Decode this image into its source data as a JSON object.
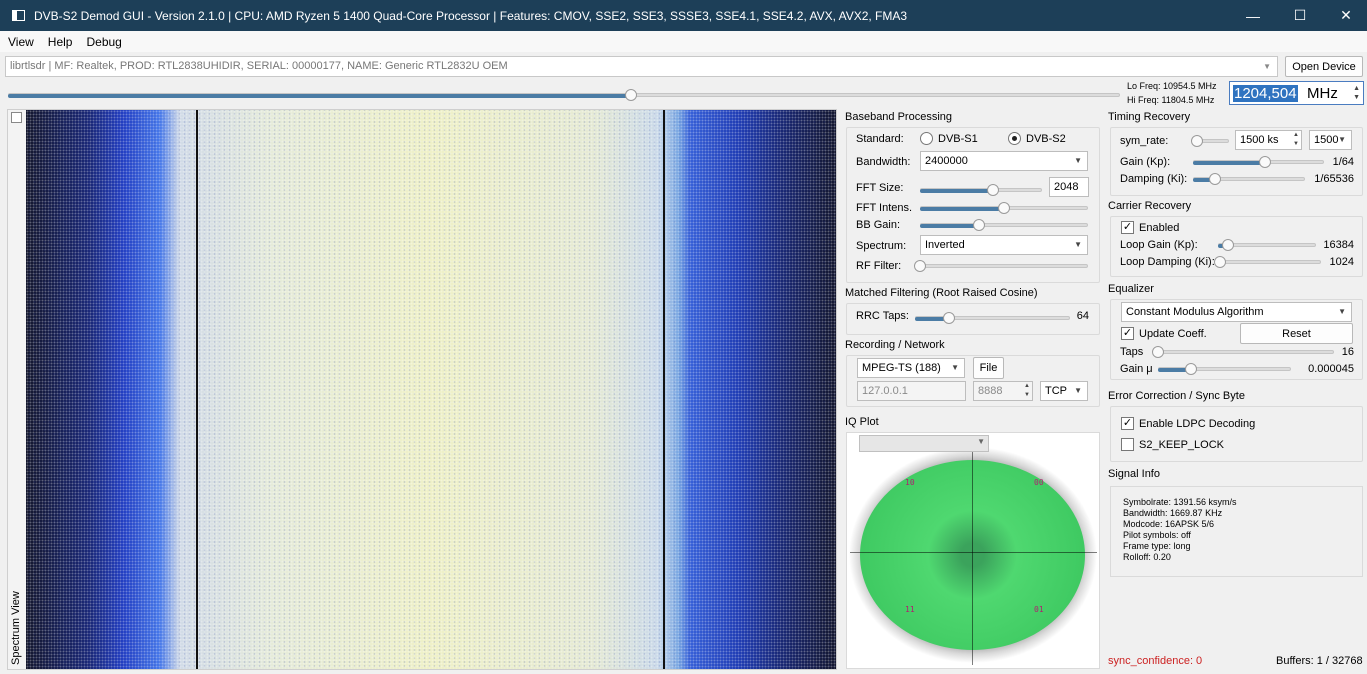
{
  "window": {
    "title": "DVB-S2 Demod GUI - Version 2.1.0 | CPU: AMD Ryzen 5 1400 Quad-Core Processor        | Features: CMOV, SSE2, SSE3, SSSE3, SSE4.1, SSE4.2, AVX, AVX2, FMA3",
    "minimize": "—",
    "maximize": "☐",
    "close": "✕"
  },
  "menu": [
    "View",
    "Help",
    "Debug"
  ],
  "device": {
    "selected": "librtlsdr | MF: Realtek, PROD: RTL2838UHIDIR, SERIAL: 00000177, NAME: Generic RTL2832U OEM",
    "open_button": "Open Device"
  },
  "frequency": {
    "lo": "Lo Freq: 10954.5 MHz",
    "hi": "Hi Freq: 11804.5 MHz",
    "value": "1204,504",
    "unit": "MHz",
    "slider_position": 0.56
  },
  "spectrum": {
    "label": "Spectrum View"
  },
  "baseband": {
    "title": "Baseband Processing",
    "standard_label": "Standard:",
    "standard_options": [
      "DVB-S1",
      "DVB-S2"
    ],
    "standard_selected": "DVB-S2",
    "bandwidth_label": "Bandwidth:",
    "bandwidth_value": "2400000",
    "fft_size_label": "FFT Size:",
    "fft_size_value": "2048",
    "fft_size_position": 0.6,
    "fft_intens_label": "FFT Intens.",
    "fft_intens_position": 0.5,
    "bb_gain_label": "BB Gain:",
    "bb_gain_position": 0.35,
    "spectrum_label": "Spectrum:",
    "spectrum_value": "Inverted",
    "rf_filter_label": "RF Filter:",
    "rf_filter_position": 0.0
  },
  "matched": {
    "title": "Matched Filtering (Root Raised Cosine)",
    "rrc_label": "RRC Taps:",
    "rrc_value": "64",
    "rrc_position": 0.22
  },
  "recording": {
    "title": "Recording / Network",
    "format": "MPEG-TS (188)",
    "file_button": "File",
    "ip": "127.0.0.1",
    "port": "8888",
    "protocol": "TCP"
  },
  "iq": {
    "title": "IQ Plot",
    "symbols": [
      "10",
      "00",
      "11",
      "01"
    ]
  },
  "timing": {
    "title": "Timing Recovery",
    "sym_rate_label": "sym_rate:",
    "sym_rate_position": 0.1,
    "sym_rate_value": "1500 ks",
    "sym_rate_combo": "1500",
    "gain_label": "Gain (Kp):",
    "gain_value": "1/64",
    "gain_position": 0.55,
    "damping_label": "Damping (Ki):",
    "damping_value": "1/65536",
    "damping_position": 0.2
  },
  "carrier": {
    "title": "Carrier Recovery",
    "enabled_label": "Enabled",
    "enabled": true,
    "loop_gain_label": "Loop Gain (Kp):",
    "loop_gain_value": "16384",
    "loop_gain_position": 0.1,
    "loop_damping_label": "Loop Damping (Ki):",
    "loop_damping_value": "1024",
    "loop_damping_position": 0.02
  },
  "equalizer": {
    "title": "Equalizer",
    "algorithm": "Constant Modulus Algorithm",
    "update_label": "Update Coeff.",
    "update_checked": true,
    "reset_button": "Reset",
    "taps_label": "Taps",
    "taps_value": "16",
    "taps_position": 0.0,
    "gain_label": "Gain μ",
    "gain_value": "0.000045",
    "gain_position": 0.25
  },
  "error": {
    "title": "Error Correction / Sync Byte",
    "ldpc_label": "Enable LDPC Decoding",
    "ldpc_checked": true,
    "keep_lock_label": "S2_KEEP_LOCK",
    "keep_lock_checked": false
  },
  "signal": {
    "title": "Signal Info",
    "lines": [
      "Symbolrate: 1391.56 ksym/s",
      "Bandwidth: 1669.87 KHz",
      "Modcode: 16APSK 5/6",
      "Pilot symbols: off",
      "Frame type: long",
      "Rolloff: 0.20"
    ]
  },
  "status": {
    "sync_confidence": "sync_confidence: 0",
    "buffers": "Buffers: 1 / 32768",
    "sync_color": "#cc2222"
  }
}
